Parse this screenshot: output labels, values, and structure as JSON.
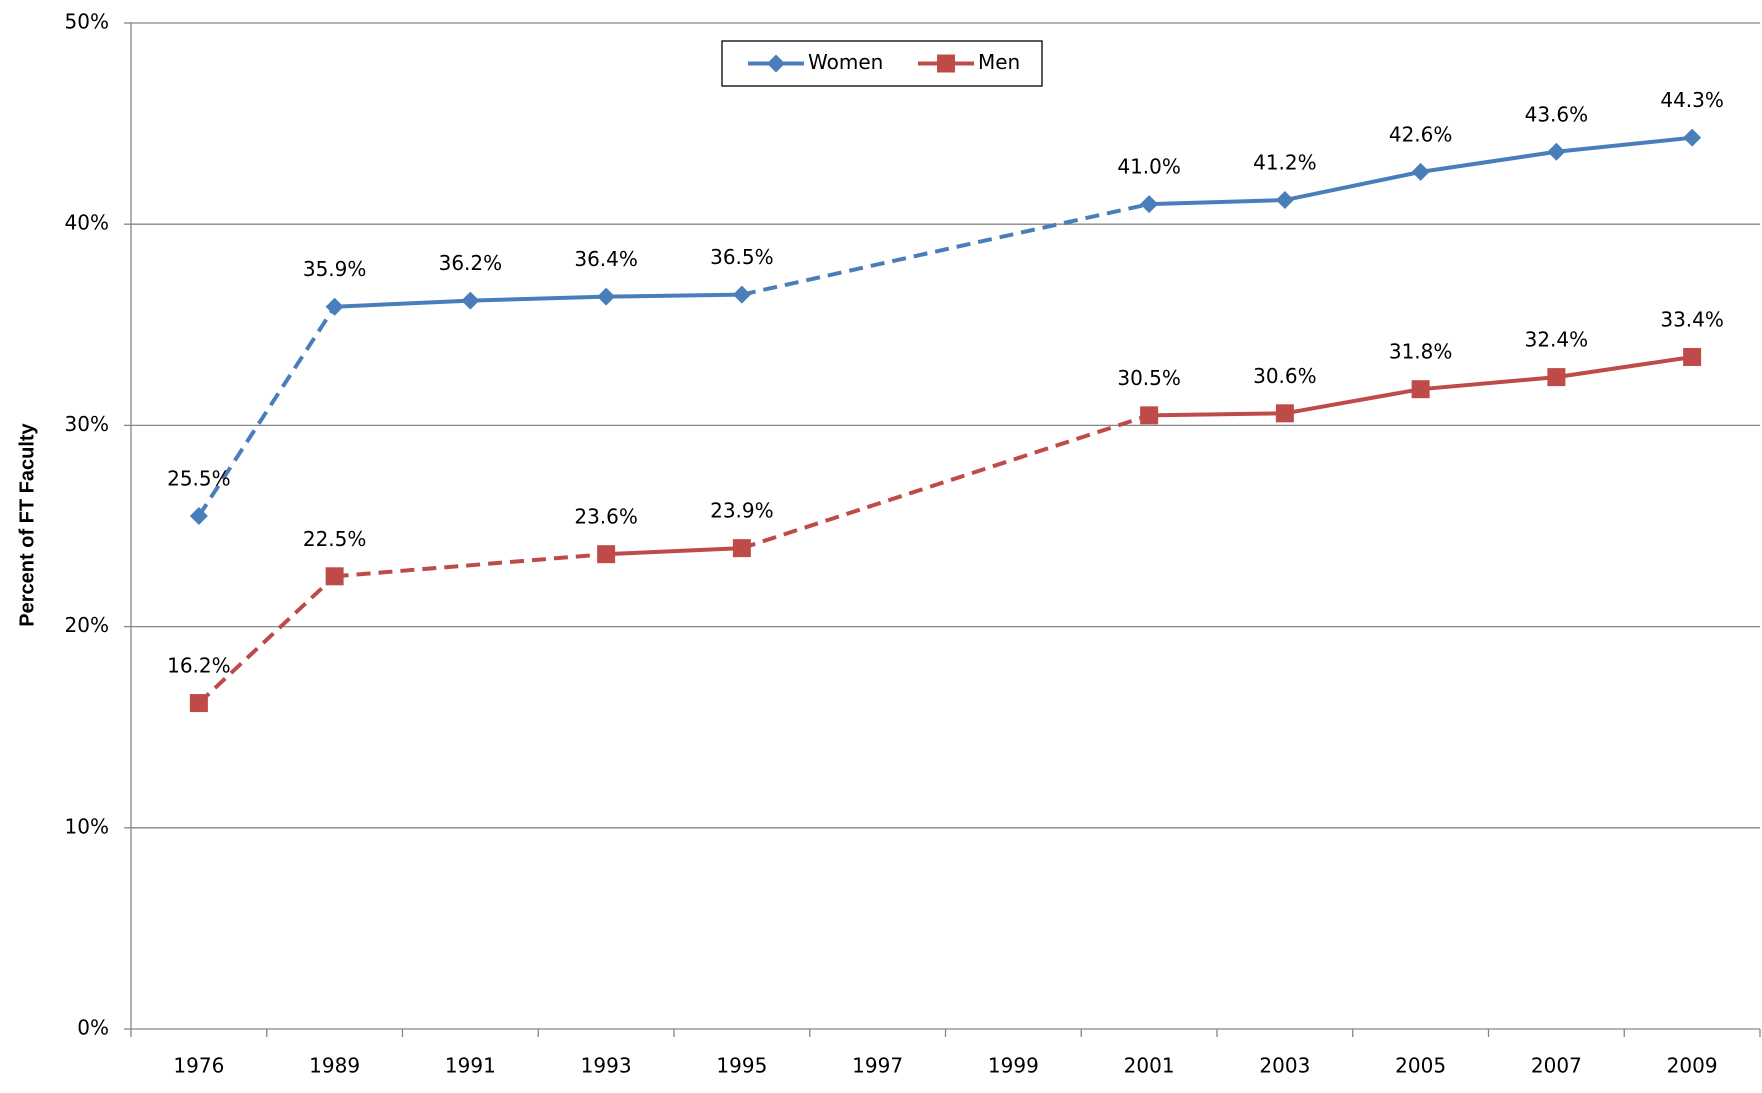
{
  "chart_data": {
    "type": "line",
    "y_label": "Percent of FT Faculty",
    "categories": [
      "1976",
      "1989",
      "1991",
      "1993",
      "1995",
      "1997",
      "1999",
      "2001",
      "2003",
      "2005",
      "2007",
      "2009"
    ],
    "series": [
      {
        "name": "Women",
        "color": "#4a7ebb",
        "marker": "diamond",
        "dashed_segments_start": [
          0,
          4
        ],
        "values": [
          25.5,
          35.9,
          36.2,
          36.4,
          36.5,
          null,
          null,
          41.0,
          41.2,
          42.6,
          43.6,
          44.3
        ],
        "value_labels": [
          "25.5%",
          "35.9%",
          "36.2%",
          "36.4%",
          "36.5%",
          null,
          null,
          "41.0%",
          "41.2%",
          "42.6%",
          "43.6%",
          "44.3%"
        ]
      },
      {
        "name": "Men",
        "color": "#be4b48",
        "marker": "square",
        "dashed_segments_start": [
          0,
          1,
          4
        ],
        "values": [
          16.2,
          22.5,
          null,
          23.6,
          23.9,
          null,
          null,
          30.5,
          30.6,
          31.8,
          32.4,
          33.4
        ],
        "value_labels": [
          "16.2%",
          "22.5%",
          null,
          "23.6%",
          "23.9%",
          null,
          null,
          "30.5%",
          "30.6%",
          "31.8%",
          "32.4%",
          "33.4%"
        ]
      }
    ],
    "ylim": [
      0,
      50
    ],
    "yticks": [
      {
        "value": 0,
        "label": "0%"
      },
      {
        "value": 10,
        "label": "10%"
      },
      {
        "value": 20,
        "label": "20%"
      },
      {
        "value": 30,
        "label": "30%"
      },
      {
        "value": 40,
        "label": "40%"
      },
      {
        "value": 50,
        "label": "50%"
      }
    ],
    "grid": true,
    "legend": "top"
  }
}
